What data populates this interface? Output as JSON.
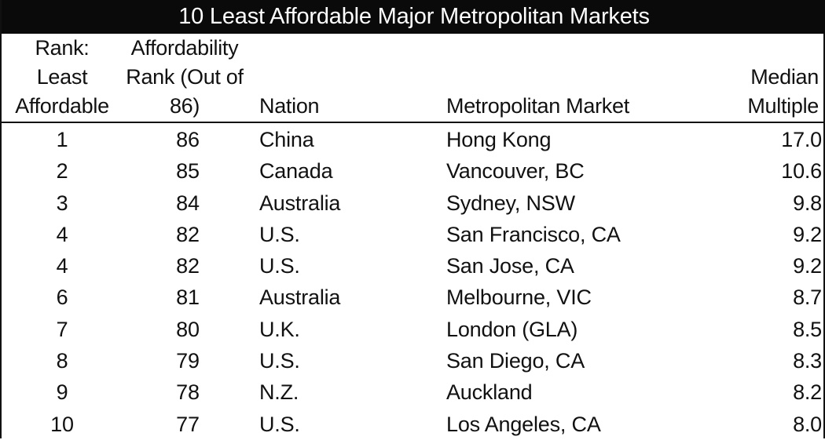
{
  "title": "10 Least Affordable Major Metropolitan Markets",
  "headers": {
    "rank": [
      "Rank:",
      "Least",
      "Affordable"
    ],
    "affordability": [
      "Affordability",
      "Rank (Out of",
      "86)"
    ],
    "nation": "Nation",
    "market": "Metropolitan Market",
    "median": [
      "Median",
      "Multiple"
    ]
  },
  "rows": [
    {
      "rank": "1",
      "aff_rank": "86",
      "nation": "China",
      "market": "Hong Kong",
      "median": "17.0"
    },
    {
      "rank": "2",
      "aff_rank": "85",
      "nation": "Canada",
      "market": "Vancouver, BC",
      "median": "10.6"
    },
    {
      "rank": "3",
      "aff_rank": "84",
      "nation": "Australia",
      "market": "Sydney, NSW",
      "median": "9.8"
    },
    {
      "rank": "4",
      "aff_rank": "82",
      "nation": "U.S.",
      "market": "San Francisco, CA",
      "median": "9.2"
    },
    {
      "rank": "4",
      "aff_rank": "82",
      "nation": "U.S.",
      "market": "San Jose, CA",
      "median": "9.2"
    },
    {
      "rank": "6",
      "aff_rank": "81",
      "nation": "Australia",
      "market": "Melbourne, VIC",
      "median": "8.7"
    },
    {
      "rank": "7",
      "aff_rank": "80",
      "nation": "U.K.",
      "market": "London (GLA)",
      "median": "8.5"
    },
    {
      "rank": "8",
      "aff_rank": "79",
      "nation": "U.S.",
      "market": "San Diego, CA",
      "median": "8.3"
    },
    {
      "rank": "9",
      "aff_rank": "78",
      "nation": "N.Z.",
      "market": "Auckland",
      "median": "8.2"
    },
    {
      "rank": "10",
      "aff_rank": "77",
      "nation": "U.S.",
      "market": "Los Angeles, CA",
      "median": "8.0"
    }
  ]
}
